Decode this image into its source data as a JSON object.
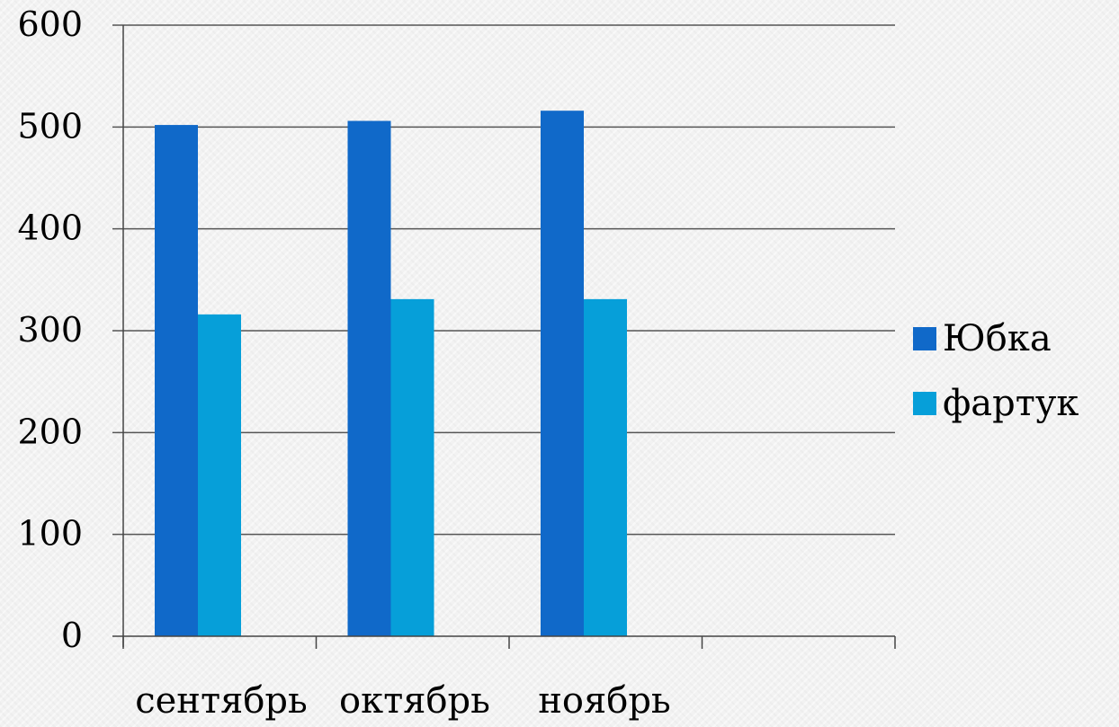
{
  "chart_data": {
    "type": "bar",
    "title": "",
    "xlabel": "",
    "ylabel": "",
    "categories": [
      "сентябрь",
      "октябрь",
      "ноябрь",
      ""
    ],
    "series": [
      {
        "name": "Юбка",
        "values": [
          502,
          506,
          516,
          null
        ],
        "color": "#1069c9"
      },
      {
        "name": "фартук",
        "values": [
          316,
          331,
          331,
          null
        ],
        "color": "#069fd9"
      }
    ],
    "ylim": [
      0,
      600
    ],
    "yticks": [
      "0",
      "100",
      "200",
      "300",
      "400",
      "500",
      "600"
    ],
    "grid": true,
    "legend": "right"
  }
}
